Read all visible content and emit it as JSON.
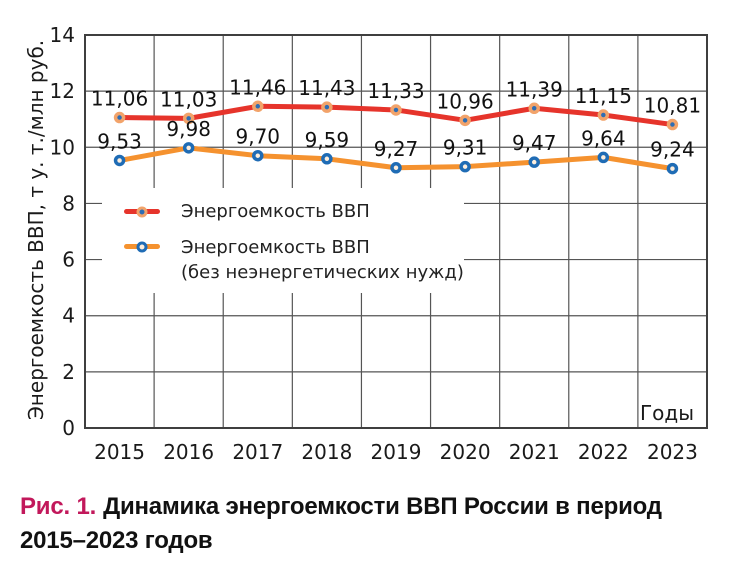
{
  "chart_data": {
    "type": "line",
    "title": "",
    "categories": [
      "2015",
      "2016",
      "2017",
      "2018",
      "2019",
      "2020",
      "2021",
      "2022",
      "2023"
    ],
    "series": [
      {
        "name": "Энергоемкость ВВП",
        "values": [
          11.06,
          11.03,
          11.46,
          11.43,
          11.33,
          10.96,
          11.39,
          11.15,
          10.81
        ],
        "labels": [
          "11,06",
          "11,03",
          "11,46",
          "11,43",
          "11,33",
          "10,96",
          "11,39",
          "11,15",
          "10,81"
        ],
        "line_color": "#e6342b",
        "marker_ring": "#f2a36a",
        "marker_center": "#2e6db4"
      },
      {
        "name": "Энергоемкость ВВП (без неэнергетических нужд)",
        "values": [
          9.53,
          9.98,
          9.7,
          9.59,
          9.27,
          9.31,
          9.47,
          9.64,
          9.24
        ],
        "labels": [
          "9,53",
          "9,98",
          "9,70",
          "9,59",
          "9,27",
          "9,31",
          "9,47",
          "9,64",
          "9,24"
        ],
        "line_color": "#f5922f",
        "marker_ring": "#1f6cb5",
        "marker_center": "#fdeedd"
      }
    ],
    "ylabel": "Энергоемкость ВВП, т у. т./млн руб.",
    "xlabel_inside": "Годы",
    "ylim": [
      0,
      14
    ],
    "ytick_step": 2,
    "grid": true,
    "grid_color": "#555555",
    "border_color": "#3f3f3f",
    "legend_position": "inside-upper-left"
  },
  "legend": {
    "items": [
      {
        "label_lines": [
          "Энергоемкость ВВП"
        ]
      },
      {
        "label_lines": [
          "Энергоемкость ВВП",
          "(без неэнергетических нужд)"
        ]
      }
    ]
  },
  "caption": {
    "label": "Рис. 1.",
    "label_color": "#c2185b",
    "text": "Динамика энергоемкости ВВП России в период 2015–2023 годов"
  }
}
